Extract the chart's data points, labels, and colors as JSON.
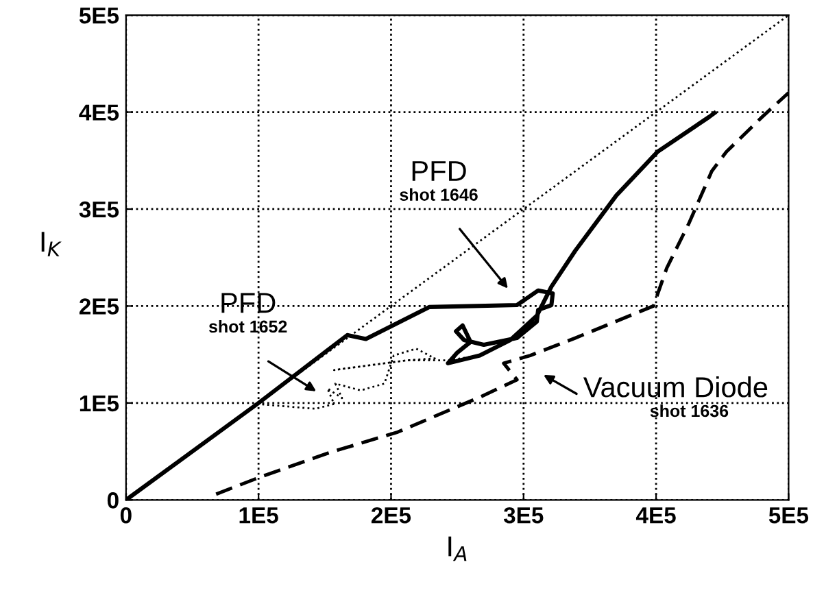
{
  "chart_data": {
    "type": "line",
    "xlabel": "I$_{A}$",
    "ylabel": "I$_{K}$",
    "xlim": [
      0,
      500000
    ],
    "ylim": [
      0,
      500000
    ],
    "xticks": [
      0,
      {
        "value": 100000,
        "label": "1E5"
      },
      {
        "value": 200000,
        "label": "2E5"
      },
      {
        "value": 300000,
        "label": "3E5"
      },
      {
        "value": 400000,
        "label": "4E5"
      },
      {
        "value": 500000,
        "label": "5E5"
      }
    ],
    "yticks": [
      0,
      {
        "value": 100000,
        "label": "1E5"
      },
      {
        "value": 200000,
        "label": "2E5"
      },
      {
        "value": 300000,
        "label": "3E5"
      },
      {
        "value": 400000,
        "label": "4E5"
      },
      {
        "value": 500000,
        "label": "5E5"
      }
    ],
    "grid": true,
    "legend": false,
    "series": [
      {
        "color": "#000000",
        "line_style": "dotted",
        "x": [
          0,
          500000
        ],
        "values": [
          0,
          500000
        ]
      },
      {
        "color": "#000000",
        "line_style": "solid",
        "x": [
          0,
          100000,
          167000,
          181000,
          229000,
          295000,
          311000,
          322000,
          321000,
          311000,
          310000,
          295000,
          270000,
          255000,
          249000,
          254000,
          260000,
          250000,
          243000,
          267000,
          290000,
          310000,
          321000,
          339000,
          370000,
          401000,
          440000,
          444000
        ],
        "values": [
          0,
          100000,
          170000,
          166000,
          199000,
          201000,
          216000,
          213000,
          201000,
          196000,
          184000,
          167000,
          160000,
          165000,
          174000,
          180000,
          163000,
          152000,
          141000,
          149000,
          165000,
          190000,
          220000,
          257000,
          314000,
          359000,
          395000,
          399000
        ]
      },
      {
        "color": "#000000",
        "line_style": "dotted",
        "x": [
          99000,
          143000,
          157000,
          152000,
          163000,
          158000,
          177000,
          195000,
          202000,
          219000,
          233000,
          212000,
          157000,
          212000,
          243000,
          267000
        ],
        "values": [
          99000,
          94000,
          99000,
          115000,
          105000,
          120000,
          113000,
          120000,
          149000,
          156000,
          146000,
          144000,
          134000,
          144000,
          144000,
          149000
        ]
      },
      {
        "color": "#000000",
        "line_style": "dashed",
        "x": [
          68000,
          102000,
          154000,
          205000,
          267000,
          295000,
          285000,
          305000,
          339000,
          398000,
          408000,
          425000,
          442000,
          453000,
          480000,
          500000
        ],
        "values": [
          6000,
          24000,
          49000,
          70000,
          106000,
          124000,
          141000,
          149000,
          167000,
          200000,
          239000,
          286000,
          339000,
          359000,
          395000,
          420000
        ]
      }
    ],
    "annotations": [
      "PFD\nshot 1646",
      "PFD\nshot 1652",
      "Vacuum Diode\nshot 1636"
    ]
  }
}
